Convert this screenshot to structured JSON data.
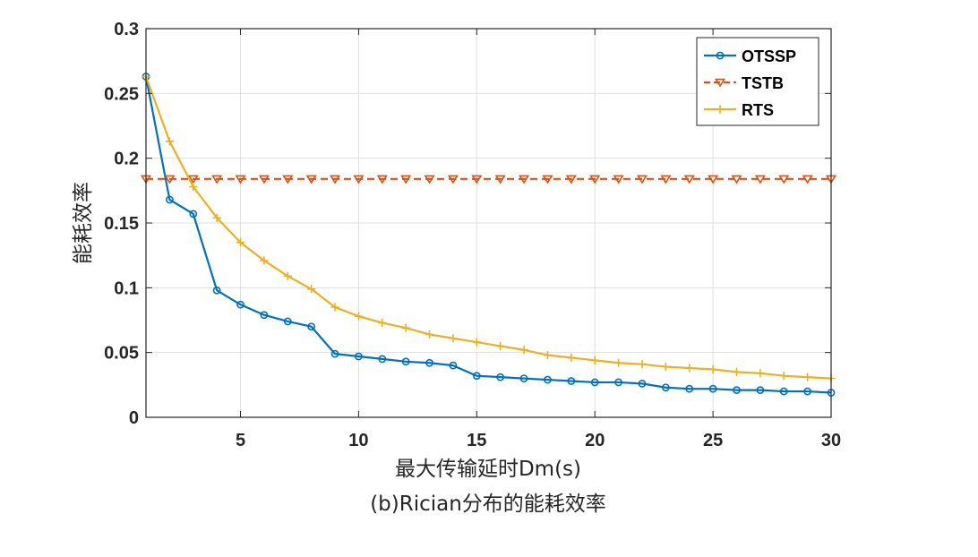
{
  "chart_data": {
    "type": "line",
    "title": "",
    "caption": "(b)Rician分布的能耗效率",
    "xlabel": "最大传输延时Dm(s)",
    "ylabel": "能耗效率",
    "xlim": [
      1,
      30
    ],
    "ylim": [
      0,
      0.3
    ],
    "xticks": [
      5,
      10,
      15,
      20,
      25,
      30
    ],
    "xtick_labels": [
      "5",
      "10",
      "15",
      "20",
      "25",
      "30"
    ],
    "yticks": [
      0,
      0.05,
      0.1,
      0.15,
      0.2,
      0.25,
      0.3
    ],
    "ytick_labels": [
      "0",
      "0.05",
      "0.1",
      "0.15",
      "0.2",
      "0.25",
      "0.3"
    ],
    "grid": true,
    "legend_position": "top-right",
    "x": [
      1,
      2,
      3,
      4,
      5,
      6,
      7,
      8,
      9,
      10,
      11,
      12,
      13,
      14,
      15,
      16,
      17,
      18,
      19,
      20,
      21,
      22,
      23,
      24,
      25,
      26,
      27,
      28,
      29,
      30
    ],
    "series": [
      {
        "name": "OTSSP",
        "color": "#0072BD",
        "marker": "circle",
        "line_style": "solid",
        "values": [
          0.263,
          0.168,
          0.157,
          0.098,
          0.087,
          0.079,
          0.074,
          0.07,
          0.049,
          0.047,
          0.045,
          0.043,
          0.042,
          0.04,
          0.032,
          0.031,
          0.03,
          0.029,
          0.028,
          0.027,
          0.027,
          0.026,
          0.023,
          0.022,
          0.022,
          0.021,
          0.021,
          0.02,
          0.02,
          0.019
        ]
      },
      {
        "name": "TSTB",
        "color": "#D95319",
        "marker": "triangle-down",
        "line_style": "dashed",
        "values": [
          0.184,
          0.184,
          0.184,
          0.184,
          0.184,
          0.184,
          0.184,
          0.184,
          0.184,
          0.184,
          0.184,
          0.184,
          0.184,
          0.184,
          0.184,
          0.184,
          0.184,
          0.184,
          0.184,
          0.184,
          0.184,
          0.184,
          0.184,
          0.184,
          0.184,
          0.184,
          0.184,
          0.184,
          0.184,
          0.184
        ]
      },
      {
        "name": "RTS",
        "color": "#EDB120",
        "marker": "plus",
        "line_style": "solid",
        "values": [
          0.263,
          0.213,
          0.178,
          0.154,
          0.135,
          0.121,
          0.109,
          0.099,
          0.085,
          0.078,
          0.073,
          0.069,
          0.064,
          0.061,
          0.058,
          0.055,
          0.052,
          0.048,
          0.046,
          0.044,
          0.042,
          0.041,
          0.039,
          0.038,
          0.037,
          0.035,
          0.034,
          0.032,
          0.031,
          0.03
        ]
      }
    ]
  }
}
